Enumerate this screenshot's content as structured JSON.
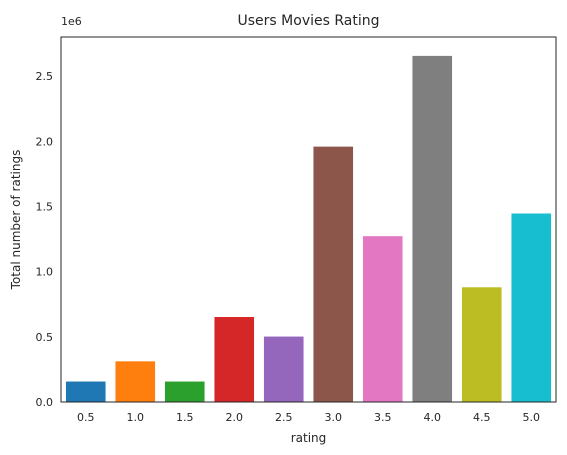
{
  "chart_data": {
    "type": "bar",
    "title": "Users Movies Rating",
    "xlabel": "rating",
    "ylabel": "Total number of ratings",
    "offset_label": "1e6",
    "categories": [
      "0.5",
      "1.0",
      "1.5",
      "2.0",
      "2.5",
      "3.0",
      "3.5",
      "4.0",
      "4.5",
      "5.0"
    ],
    "values": [
      0.157,
      0.312,
      0.157,
      0.652,
      0.502,
      1.959,
      1.272,
      2.655,
      0.88,
      1.446
    ],
    "value_scale": 1000000,
    "ylim": [
      0,
      2.8
    ],
    "yticks": [
      0.0,
      0.5,
      1.0,
      1.5,
      2.0,
      2.5
    ],
    "ytick_labels": [
      "0.0",
      "0.5",
      "1.0",
      "1.5",
      "2.0",
      "2.5"
    ],
    "colors": [
      "#1f77b4",
      "#ff7f0e",
      "#2ca02c",
      "#d62728",
      "#9467bd",
      "#8c564b",
      "#e377c2",
      "#7f7f7f",
      "#bcbd22",
      "#17becf"
    ],
    "grid": false,
    "legend": "none"
  }
}
